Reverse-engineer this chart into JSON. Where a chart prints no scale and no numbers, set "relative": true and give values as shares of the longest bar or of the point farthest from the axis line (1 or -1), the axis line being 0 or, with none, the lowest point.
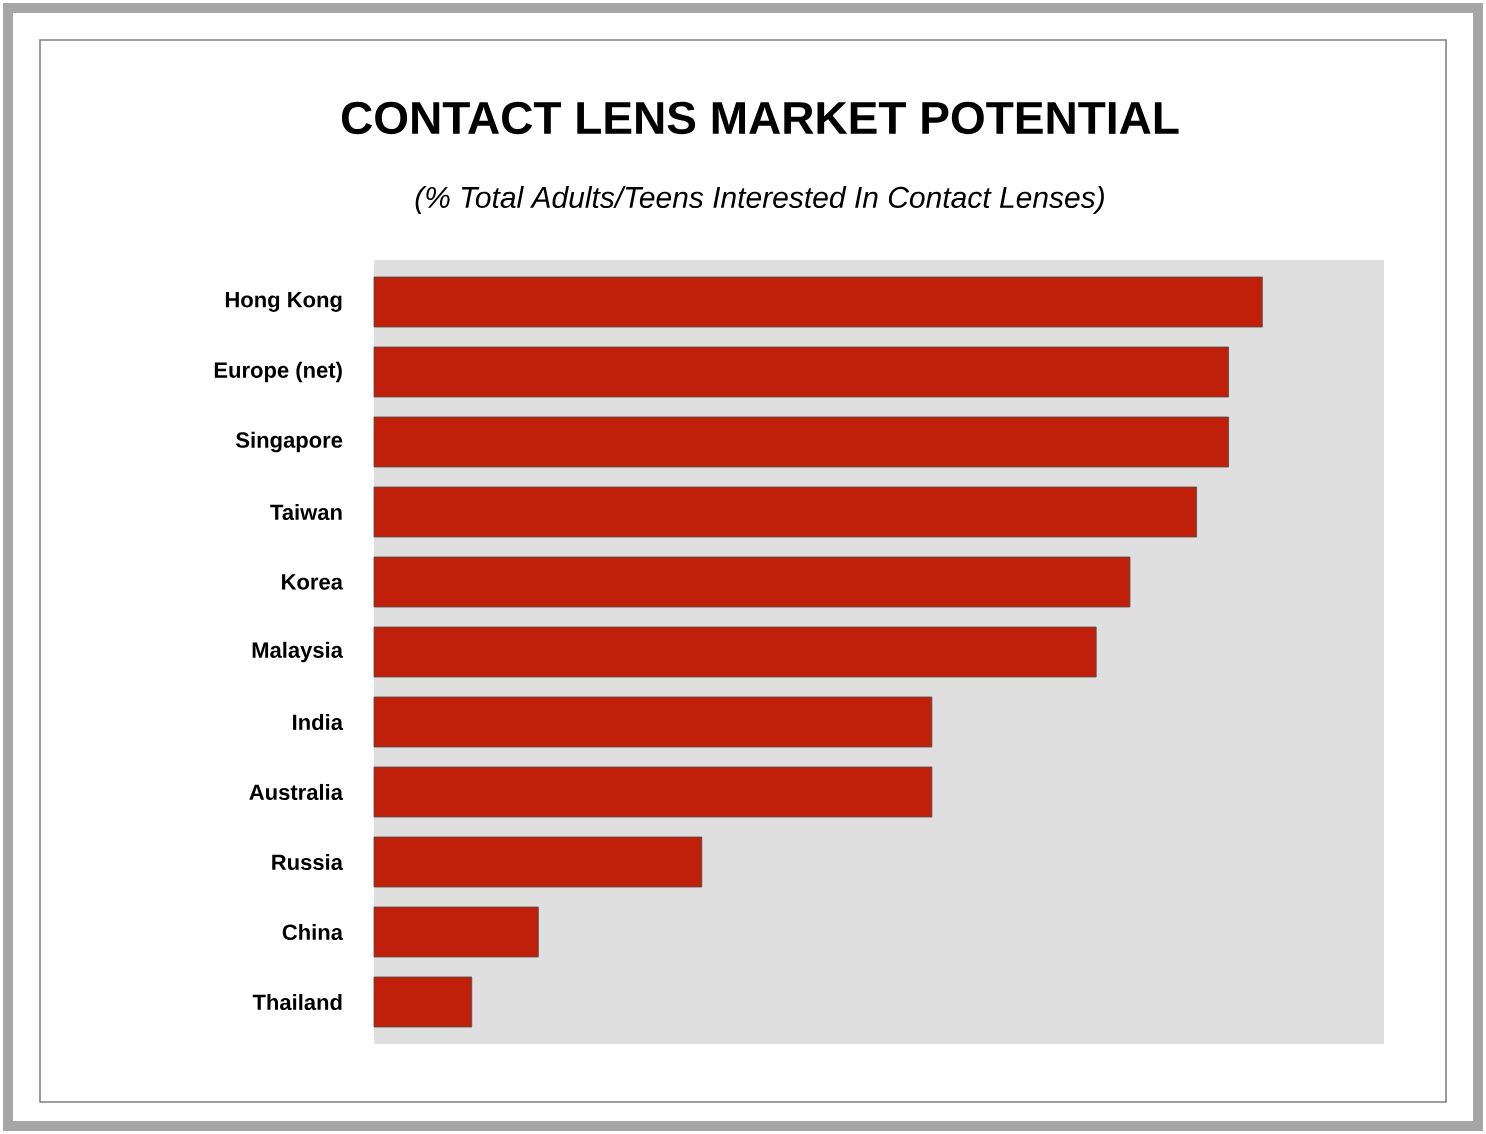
{
  "chart_data": {
    "type": "bar",
    "orientation": "horizontal",
    "relative": true,
    "title": "CONTACT LENS MARKET POTENTIAL",
    "subtitle": "(% Total Adults/Teens Interested In Contact Lenses)",
    "categories": [
      "Hong Kong",
      "Europe (net)",
      "Singapore",
      "Taiwan",
      "Korea",
      "Malaysia",
      "India",
      "Australia",
      "Russia",
      "China",
      "Thailand"
    ],
    "values": [
      1,
      0.962,
      0.962,
      0.926,
      0.851,
      0.813,
      0.628,
      0.628,
      0.369,
      0.185,
      0.11
    ],
    "color": "#c0200a"
  }
}
